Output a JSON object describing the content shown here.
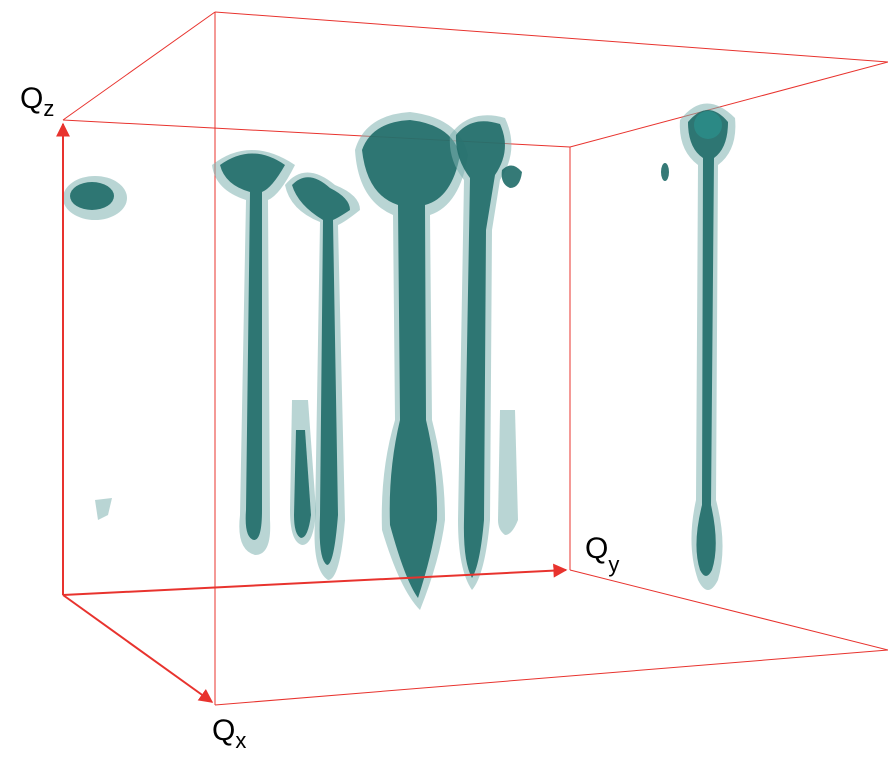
{
  "axes": {
    "z": {
      "symbol": "Q",
      "subscript": "z"
    },
    "y": {
      "symbol": "Q",
      "subscript": "y"
    },
    "x": {
      "symbol": "Q",
      "subscript": "x"
    }
  }
}
